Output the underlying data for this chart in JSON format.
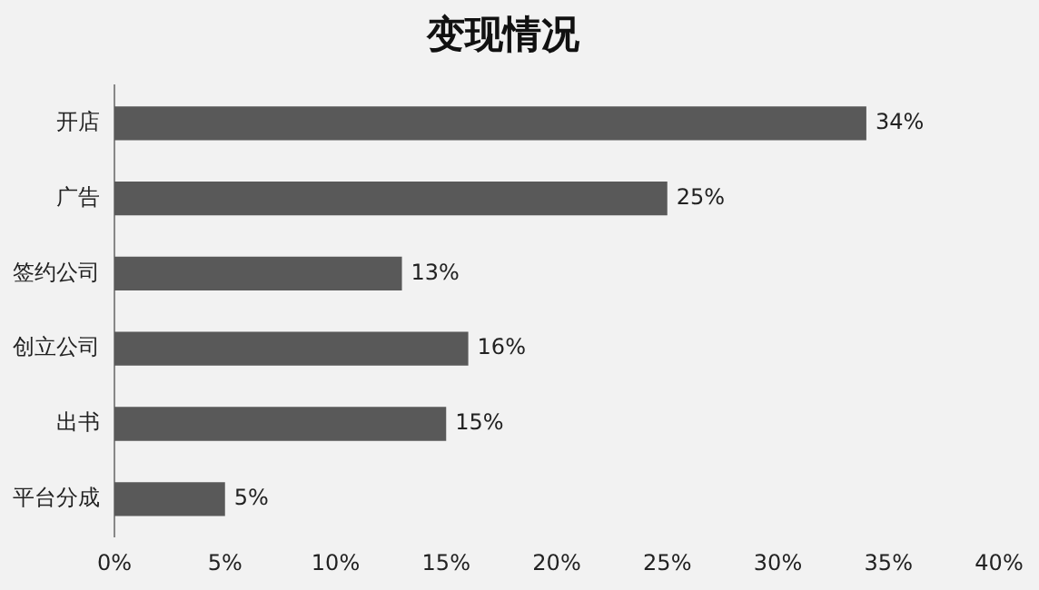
{
  "chart_data": {
    "type": "bar",
    "title": "变现情况",
    "orientation": "horizontal",
    "categories": [
      "开店",
      "广告",
      "签约公司",
      "创立公司",
      "出书",
      "平台分成"
    ],
    "values": [
      34,
      25,
      13,
      16,
      15,
      5
    ],
    "value_labels": [
      "34%",
      "25%",
      "13%",
      "16%",
      "15%",
      "5%"
    ],
    "color": "#595959",
    "xlim": [
      0,
      40
    ],
    "xticks": [
      {
        "value": 0,
        "label": "0%"
      },
      {
        "value": 5,
        "label": "5%"
      },
      {
        "value": 10,
        "label": "10%"
      },
      {
        "value": 15,
        "label": "15%"
      },
      {
        "value": 20,
        "label": "20%"
      },
      {
        "value": 25,
        "label": "25%"
      },
      {
        "value": 30,
        "label": "30%"
      },
      {
        "value": 35,
        "label": "35%"
      },
      {
        "value": 40,
        "label": "40%"
      }
    ],
    "grid": false
  }
}
